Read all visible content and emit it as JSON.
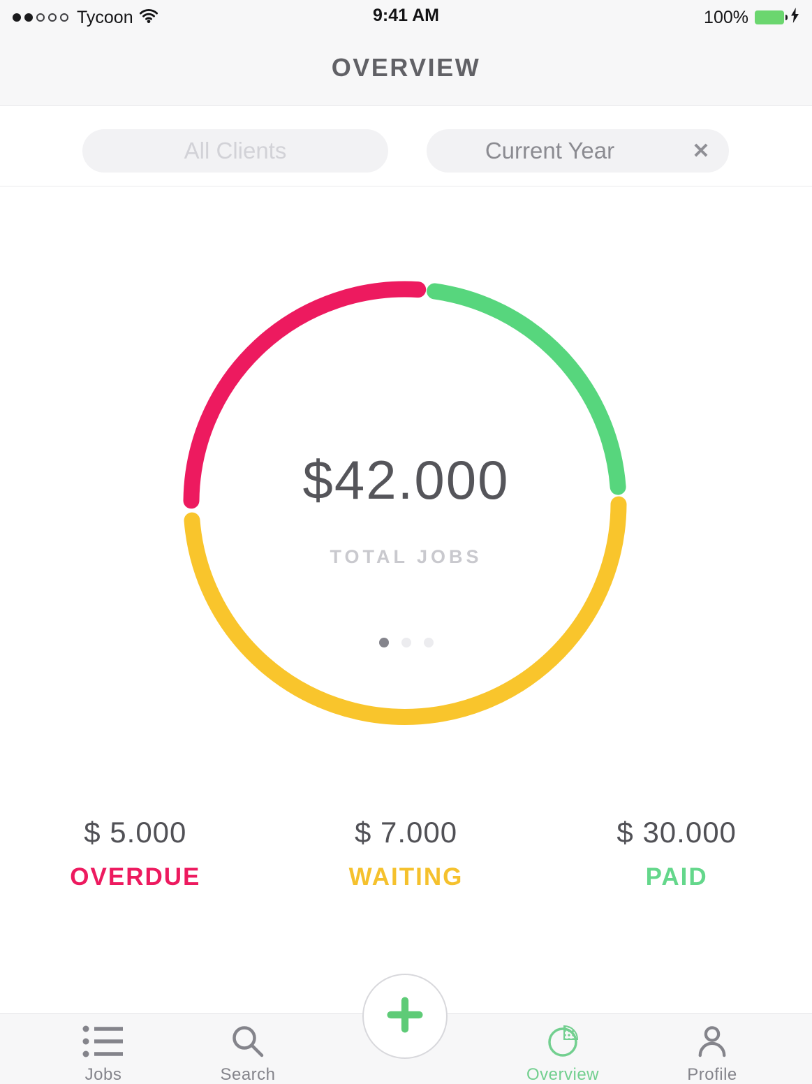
{
  "status_bar": {
    "carrier": "Tycoon",
    "time": "9:41 AM",
    "battery_percent": "100%",
    "battery_color": "#6bd66f",
    "signal_filled": 2,
    "signal_total": 5
  },
  "header": {
    "title": "OVERVIEW"
  },
  "filters": {
    "client_filter": "All Clients",
    "period_filter": "Current Year",
    "clear_icon": "✕"
  },
  "chart_data": {
    "type": "pie",
    "style": "donut-ring",
    "center_value": "$42.000",
    "center_label": "TOTAL JOBS",
    "total": 42000,
    "legend_position": "below",
    "series": [
      {
        "name": "PAID",
        "value": 30000,
        "color": "#57d67d",
        "start_deg": 8.0,
        "end_deg": 85.7
      },
      {
        "name": "WAITING",
        "value": 7000,
        "color": "#f9c52c",
        "start_deg": 90.4,
        "end_deg": 265.3
      },
      {
        "name": "OVERDUE",
        "value": 5000,
        "color": "#ed1a5f",
        "start_deg": 270.6,
        "end_deg": 363.5
      }
    ],
    "ring": {
      "radius": 306,
      "stroke_width": 23
    },
    "carousel": {
      "dot_count": 3,
      "active_index": 0
    }
  },
  "stats": [
    {
      "amount": "$ 5.000",
      "label": "OVERDUE",
      "color": "#ed1a5f"
    },
    {
      "amount": "$ 7.000",
      "label": "WAITING",
      "color": "#f5c12d"
    },
    {
      "amount": "$ 30.000",
      "label": "PAID",
      "color": "#64d78b"
    }
  ],
  "tab_bar": {
    "items": [
      {
        "label": "Jobs",
        "icon": "list-icon",
        "active": false
      },
      {
        "label": "Search",
        "icon": "search-icon",
        "active": false
      },
      {
        "label": "Overview",
        "icon": "pie-chart-icon",
        "active": true
      },
      {
        "label": "Profile",
        "icon": "profile-icon",
        "active": false
      }
    ],
    "add_button_icon": "plus-icon",
    "active_color": "#72cf8f"
  }
}
